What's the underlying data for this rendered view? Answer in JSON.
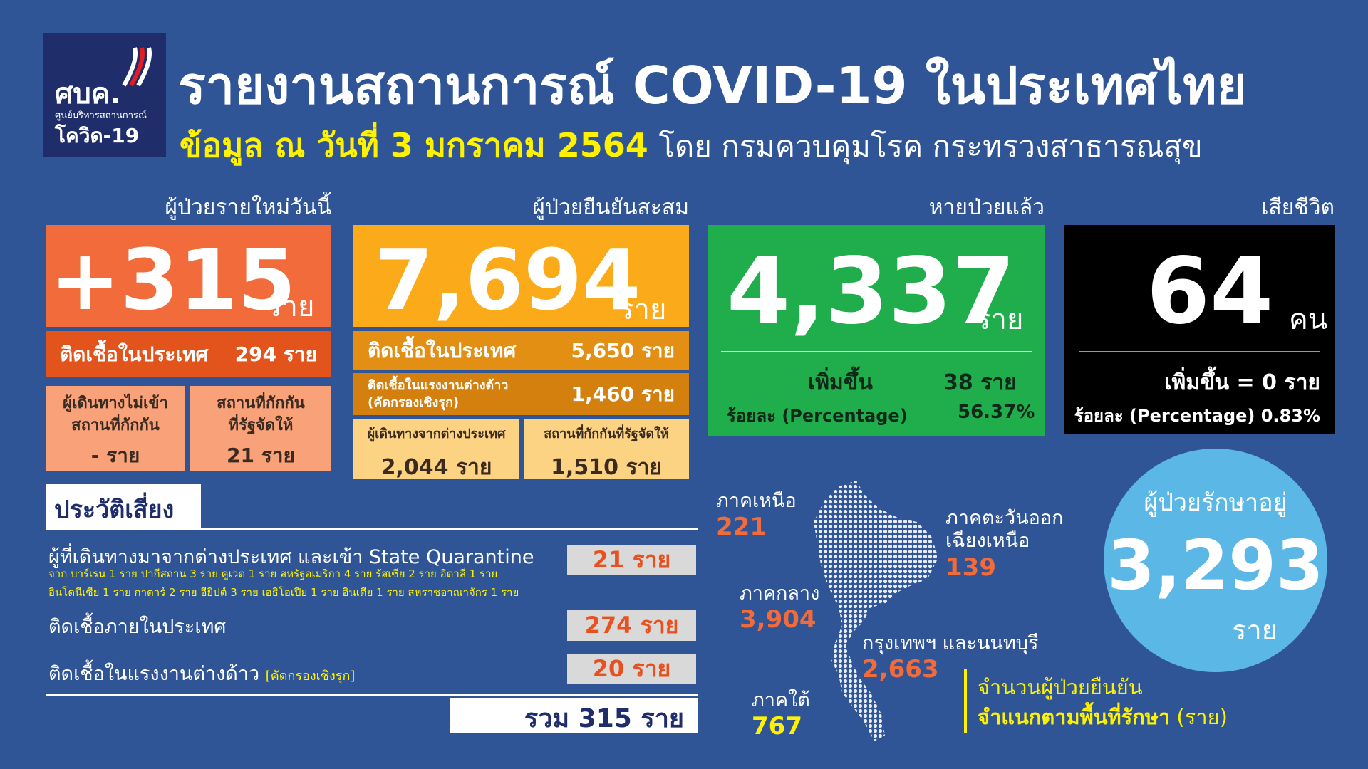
{
  "header": {
    "logo": {
      "title": "ศบค.",
      "subtitle": "ศูนย์บริหารสถานการณ์",
      "name": "โควิด-19"
    },
    "title": "รายงานสถานการณ์ COVID-19 ในประเทศไทย",
    "date": "ข้อมูล ณ วันที่ 3 มกราคม 2564",
    "source": "โดย กรมควบคุมโรค กระทรวงสาธารณสุข"
  },
  "new_cases": {
    "label": "ผู้ป่วยรายใหม่วันนี้",
    "value": "+315",
    "unit": "ราย",
    "domestic": {
      "label": "ติดเชื้อในประเทศ",
      "value": "294 ราย"
    },
    "no_quarantine": {
      "label": "ผู้เดินทางไม่เข้า\nสถานที่กักกัน",
      "value": "- ราย"
    },
    "state_quarantine": {
      "label": "สถานที่กักกัน\nที่รัฐจัดให้",
      "value": "21 ราย"
    }
  },
  "cumulative": {
    "label": "ผู้ป่วยยืนยันสะสม",
    "value": "7,694",
    "unit": "ราย",
    "domestic": {
      "label": "ติดเชื้อในประเทศ",
      "value": "5,650 ราย"
    },
    "migrant": {
      "label": "ติดเชื้อในแรงงานต่างด้าว\n(คัดกรองเชิงรุก)",
      "value": "1,460 ราย"
    },
    "travelers": {
      "label": "ผู้เดินทางจากต่างประเทศ",
      "value": "2,044 ราย"
    },
    "state_quarantine": {
      "label": "สถานที่กักกันที่รัฐจัดให้",
      "value": "1,510 ราย"
    }
  },
  "recovered": {
    "label": "หายป่วยแล้ว",
    "value": "4,337",
    "unit": "ราย",
    "increase_label": "เพิ่มขึ้น",
    "increase": "38 ราย",
    "percent_label": "ร้อยละ (Percentage)",
    "percent": "56.37%"
  },
  "deaths": {
    "label": "เสียชีวิต",
    "value": "64",
    "unit": "คน",
    "increase": "เพิ่มขึ้น = 0 ราย",
    "percent": "ร้อยละ (Percentage) 0.83%"
  },
  "risk_history": {
    "title": "ประวัติเสี่ยง",
    "rows": [
      {
        "label": "ผู้ที่เดินทางมาจากต่างประเทศ และเข้า State Quarantine",
        "details": [
          "จาก บาร์เรน 1 ราย ปากีสถาน 3 ราย คูเวต 1 ราย  สหรัฐอเมริกา 4 ราย รัสเซีย 2 ราย อิตาลี 1 ราย",
          "อินโดนีเซีย 1 ราย กาตาร์ 2 ราย อียิปต์ 3 ราย เอธิโอเปีย 1 ราย อินเดีย 1 ราย สหราชอาณาจักร 1 ราย"
        ],
        "value": "21 ราย"
      },
      {
        "label": "ติดเชื้อภายในประเทศ",
        "value": "274 ราย"
      },
      {
        "label": "ติดเชื้อในแรงงานต่างด้าว",
        "note": "[คัดกรองเชิงรุก]",
        "value": "20 ราย"
      }
    ],
    "total": "รวม 315 ราย"
  },
  "regions": [
    {
      "name": "ภาคเหนือ",
      "value": "221"
    },
    {
      "name": "ภาคตะวันออก\nเฉียงเหนือ",
      "value": "139"
    },
    {
      "name": "ภาคกลาง",
      "value": "3,904"
    },
    {
      "name": "กรุงเทพฯ และนนทบุรี",
      "value": "2,663"
    },
    {
      "name": "ภาคใต้",
      "value": "767"
    }
  ],
  "region_caption": {
    "line1": "จำนวนผู้ป่วยยืนยัน",
    "line2": "จำแนกตามพื้นที่รักษา",
    "unit": "(ราย)"
  },
  "in_treatment": {
    "label": "ผู้ป่วยรักษาอยู่",
    "value": "3,293",
    "unit": "ราย"
  }
}
